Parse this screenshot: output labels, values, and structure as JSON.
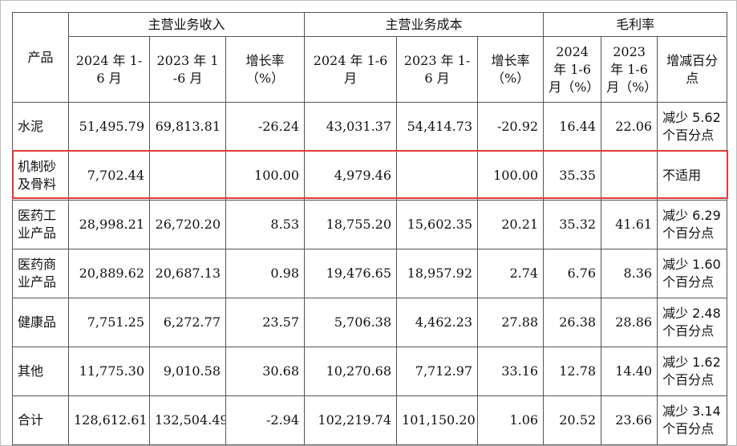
{
  "table": {
    "header": {
      "product": "产品",
      "revenue_group": "主营业务收入",
      "cost_group": "主营业务成本",
      "margin_group": "毛利率",
      "rev_2024": "2024 年 1-6 月",
      "rev_2023": "2023 年 1-6 月",
      "rev_growth": "增长率（%）",
      "cost_2024": "2024 年 1-6 月",
      "cost_2023": "2023 年 1-6 月",
      "cost_growth": "增长率（%）",
      "gm_2024": "2024 年 1-6 月（%）",
      "gm_2023": "2023 年 1-6 月（%）",
      "gm_change": "增减百分点"
    },
    "rows": [
      {
        "product": "水泥",
        "rev_2024": "51,495.79",
        "rev_2023": "69,813.81",
        "rev_growth": "-26.24",
        "cost_2024": "43,031.37",
        "cost_2023": "54,414.73",
        "cost_growth": "-20.92",
        "gm_2024": "16.44",
        "gm_2023": "22.06",
        "gm_change": "减少 5.62 个百分点"
      },
      {
        "product": "机制砂及骨料",
        "rev_2024": "7,702.44",
        "rev_2023": "",
        "rev_growth": "100.00",
        "cost_2024": "4,979.46",
        "cost_2023": "",
        "cost_growth": "100.00",
        "gm_2024": "35.35",
        "gm_2023": "",
        "gm_change": "不适用"
      },
      {
        "product": "医药工业产品",
        "rev_2024": "28,998.21",
        "rev_2023": "26,720.20",
        "rev_growth": "8.53",
        "cost_2024": "18,755.20",
        "cost_2023": "15,602.35",
        "cost_growth": "20.21",
        "gm_2024": "35.32",
        "gm_2023": "41.61",
        "gm_change": "减少 6.29 个百分点"
      },
      {
        "product": "医药商业产品",
        "rev_2024": "20,889.62",
        "rev_2023": "20,687.13",
        "rev_growth": "0.98",
        "cost_2024": "19,476.65",
        "cost_2023": "18,957.92",
        "cost_growth": "2.74",
        "gm_2024": "6.76",
        "gm_2023": "8.36",
        "gm_change": "减少 1.60 个百分点"
      },
      {
        "product": "健康品",
        "rev_2024": "7,751.25",
        "rev_2023": "6,272.77",
        "rev_growth": "23.57",
        "cost_2024": "5,706.38",
        "cost_2023": "4,462.23",
        "cost_growth": "27.88",
        "gm_2024": "26.38",
        "gm_2023": "28.86",
        "gm_change": "减少 2.48 个百分点"
      },
      {
        "product": "其他",
        "rev_2024": "11,775.30",
        "rev_2023": "9,010.58",
        "rev_growth": "30.68",
        "cost_2024": "10,270.68",
        "cost_2023": "7,712.97",
        "cost_growth": "33.16",
        "gm_2024": "12.78",
        "gm_2023": "14.40",
        "gm_change": "减少 1.62 个百分点"
      },
      {
        "product": "合计",
        "rev_2024": "128,612.61",
        "rev_2023": "132,504.49",
        "rev_growth": "-2.94",
        "cost_2024": "102,219.74",
        "cost_2023": "101,150.20",
        "cost_growth": "1.06",
        "gm_2024": "20.52",
        "gm_2023": "23.66",
        "gm_change": "减少 3.14 个百分点"
      }
    ]
  },
  "highlight": {
    "row_index": 1,
    "color": "#e53935"
  }
}
